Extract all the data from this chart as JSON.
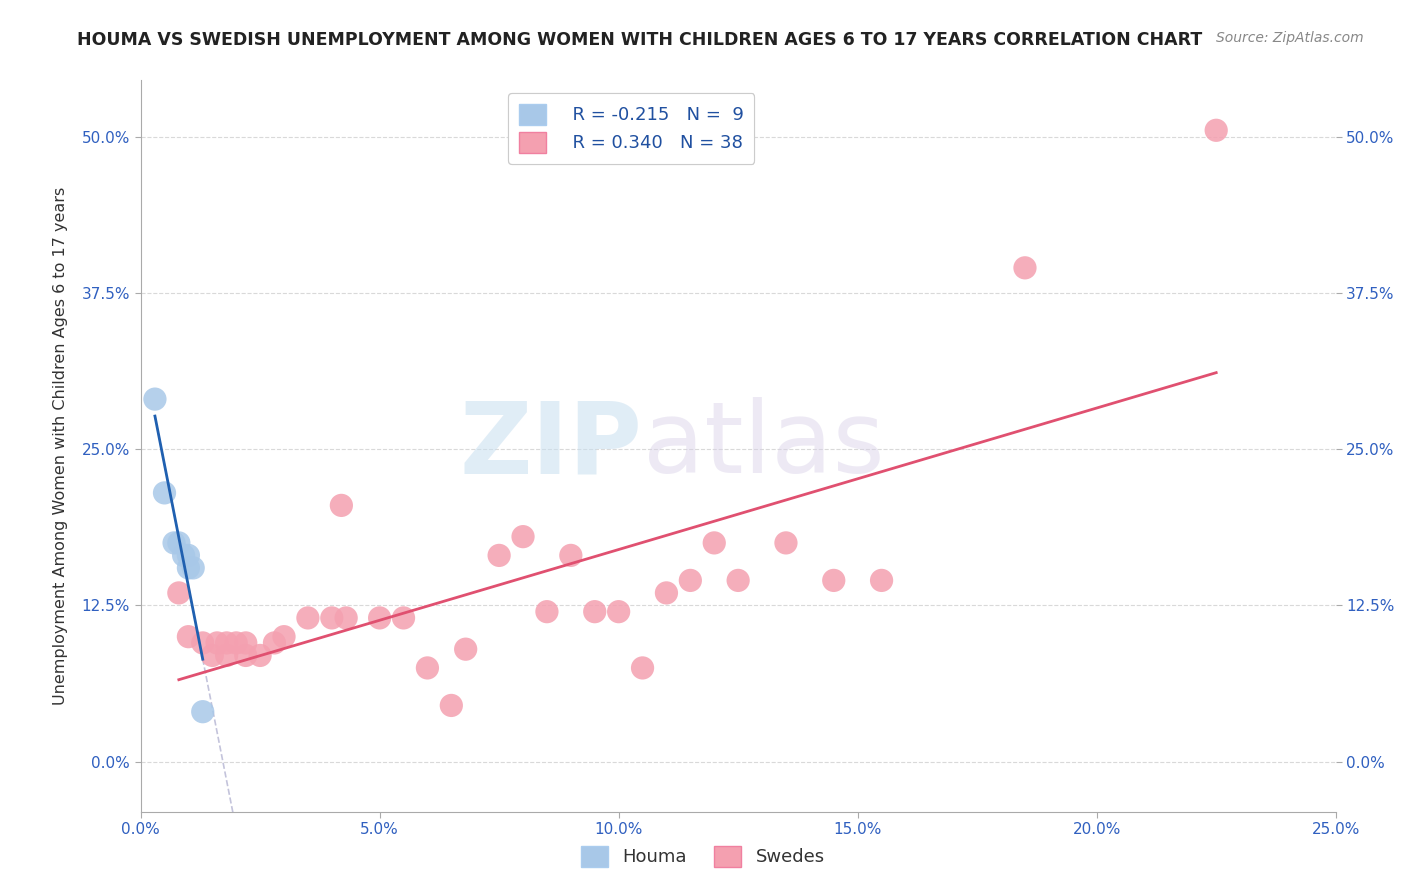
{
  "title": "HOUMA VS SWEDISH UNEMPLOYMENT AMONG WOMEN WITH CHILDREN AGES 6 TO 17 YEARS CORRELATION CHART",
  "source": "Source: ZipAtlas.com",
  "ylabel": "Unemployment Among Women with Children Ages 6 to 17 years",
  "legend_houma_label": "Houma",
  "legend_swedes_label": "Swedes",
  "houma_r": "-0.215",
  "houma_n": "9",
  "swedes_r": "0.340",
  "swedes_n": "38",
  "xlim": [
    0.0,
    0.25
  ],
  "ylim": [
    -0.04,
    0.545
  ],
  "xticks": [
    0.0,
    0.05,
    0.1,
    0.15,
    0.2,
    0.25
  ],
  "yticks": [
    0.0,
    0.125,
    0.25,
    0.375,
    0.5
  ],
  "houma_color": "#a8c8e8",
  "swedes_color": "#f4a0b0",
  "trend_houma_color": "#2060b0",
  "trend_swedes_color": "#e05070",
  "houma_scatter": [
    [
      0.003,
      0.29
    ],
    [
      0.005,
      0.215
    ],
    [
      0.007,
      0.175
    ],
    [
      0.008,
      0.175
    ],
    [
      0.009,
      0.165
    ],
    [
      0.01,
      0.155
    ],
    [
      0.01,
      0.165
    ],
    [
      0.011,
      0.155
    ],
    [
      0.013,
      0.04
    ]
  ],
  "swedes_scatter": [
    [
      0.008,
      0.135
    ],
    [
      0.01,
      0.1
    ],
    [
      0.013,
      0.095
    ],
    [
      0.015,
      0.085
    ],
    [
      0.016,
      0.095
    ],
    [
      0.018,
      0.095
    ],
    [
      0.018,
      0.085
    ],
    [
      0.02,
      0.095
    ],
    [
      0.022,
      0.085
    ],
    [
      0.022,
      0.095
    ],
    [
      0.025,
      0.085
    ],
    [
      0.028,
      0.095
    ],
    [
      0.03,
      0.1
    ],
    [
      0.035,
      0.115
    ],
    [
      0.04,
      0.115
    ],
    [
      0.042,
      0.205
    ],
    [
      0.043,
      0.115
    ],
    [
      0.05,
      0.115
    ],
    [
      0.055,
      0.115
    ],
    [
      0.06,
      0.075
    ],
    [
      0.065,
      0.045
    ],
    [
      0.068,
      0.09
    ],
    [
      0.075,
      0.165
    ],
    [
      0.08,
      0.18
    ],
    [
      0.085,
      0.12
    ],
    [
      0.09,
      0.165
    ],
    [
      0.095,
      0.12
    ],
    [
      0.1,
      0.12
    ],
    [
      0.105,
      0.075
    ],
    [
      0.11,
      0.135
    ],
    [
      0.115,
      0.145
    ],
    [
      0.12,
      0.175
    ],
    [
      0.125,
      0.145
    ],
    [
      0.135,
      0.175
    ],
    [
      0.145,
      0.145
    ],
    [
      0.155,
      0.145
    ],
    [
      0.185,
      0.395
    ],
    [
      0.225,
      0.505
    ]
  ],
  "background_color": "#ffffff",
  "grid_color": "#d0d0d0",
  "watermark_zip": "ZIP",
  "watermark_atlas": "atlas"
}
